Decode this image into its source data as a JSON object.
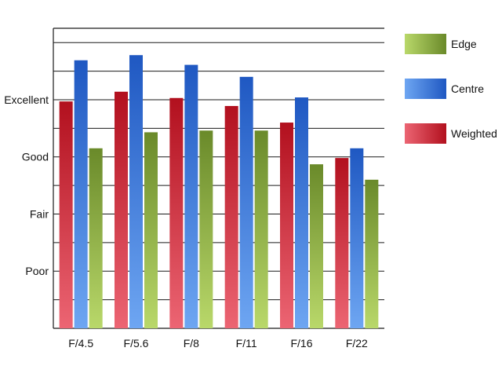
{
  "chart_data": {
    "type": "bar",
    "categories": [
      "F/4.5",
      "F/5.6",
      "F/8",
      "F/11",
      "F/16",
      "F/22"
    ],
    "series": [
      {
        "name": "Weighted",
        "values": [
          3.97,
          4.14,
          4.03,
          3.89,
          3.6,
          2.98
        ]
      },
      {
        "name": "Centre",
        "values": [
          4.69,
          4.78,
          4.61,
          4.4,
          4.04,
          3.15
        ]
      },
      {
        "name": "Edge",
        "values": [
          3.15,
          3.43,
          3.46,
          3.46,
          2.87,
          2.6
        ]
      }
    ],
    "ylim": [
      0,
      5.25
    ],
    "yticks": [
      {
        "label": "Poor",
        "value": 1
      },
      {
        "label": "Fair",
        "value": 2
      },
      {
        "label": "Good",
        "value": 3
      },
      {
        "label": "Excellent",
        "value": 4
      }
    ],
    "grid_step": 0.5,
    "grid": true,
    "legend_position": "right",
    "legend_order": [
      "Edge",
      "Centre",
      "Weighted"
    ],
    "colors": {
      "Weighted": {
        "dark": "#b2101e",
        "light": "#ec6573"
      },
      "Centre": {
        "dark": "#1f58c2",
        "light": "#6ea6f2"
      },
      "Edge": {
        "dark": "#6a8a2a",
        "light": "#b9d86a"
      }
    }
  }
}
